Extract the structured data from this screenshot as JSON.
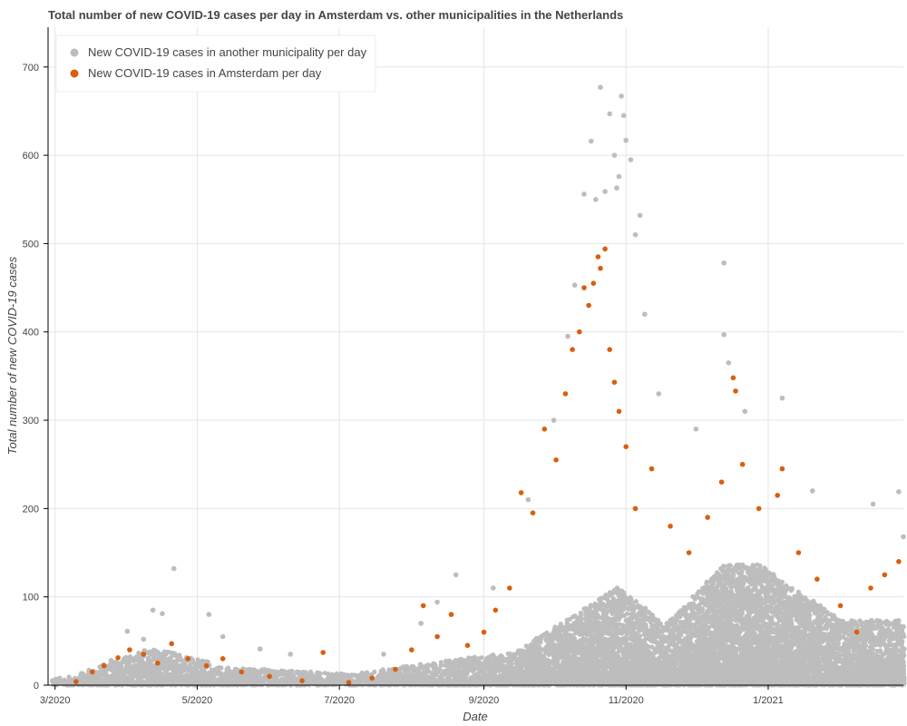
{
  "chart_data": {
    "type": "scatter",
    "title": "Total number of new COVID-19 cases per day in Amsterdam vs. other municipalities in the Netherlands",
    "xlabel": "Date",
    "ylabel": "Total number of new COVID-19 cases",
    "x_axis_type": "datetime",
    "xlim": [
      "2020-02-27",
      "2021-02-28"
    ],
    "ylim": [
      0,
      745
    ],
    "x_ticks": [
      {
        "date": "2020-03-01",
        "label": "3/2020"
      },
      {
        "date": "2020-05-01",
        "label": "5/2020"
      },
      {
        "date": "2020-07-01",
        "label": "7/2020"
      },
      {
        "date": "2020-09-01",
        "label": "9/2020"
      },
      {
        "date": "2020-11-01",
        "label": "11/2020"
      },
      {
        "date": "2021-01-01",
        "label": "1/2021"
      }
    ],
    "y_ticks": [
      0,
      100,
      200,
      300,
      400,
      500,
      600,
      700
    ],
    "grid": true,
    "legend_position": "top-left",
    "series": [
      {
        "name": "New COVID-19 cases in another municipality per day",
        "color": "#bdbdbd",
        "values": [
          {
            "x": "2020-03-15",
            "y": 10
          },
          {
            "x": "2020-03-25",
            "y": 28
          },
          {
            "x": "2020-04-01",
            "y": 61
          },
          {
            "x": "2020-04-08",
            "y": 52
          },
          {
            "x": "2020-04-12",
            "y": 85
          },
          {
            "x": "2020-04-16",
            "y": 81
          },
          {
            "x": "2020-04-21",
            "y": 132
          },
          {
            "x": "2020-05-06",
            "y": 80
          },
          {
            "x": "2020-05-12",
            "y": 55
          },
          {
            "x": "2020-05-28",
            "y": 41
          },
          {
            "x": "2020-06-10",
            "y": 35
          },
          {
            "x": "2020-06-28",
            "y": 12
          },
          {
            "x": "2020-07-20",
            "y": 35
          },
          {
            "x": "2020-08-05",
            "y": 70
          },
          {
            "x": "2020-08-12",
            "y": 94
          },
          {
            "x": "2020-08-20",
            "y": 125
          },
          {
            "x": "2020-09-05",
            "y": 110
          },
          {
            "x": "2020-09-20",
            "y": 210
          },
          {
            "x": "2020-10-01",
            "y": 300
          },
          {
            "x": "2020-10-07",
            "y": 395
          },
          {
            "x": "2020-10-10",
            "y": 453
          },
          {
            "x": "2020-10-14",
            "y": 556
          },
          {
            "x": "2020-10-17",
            "y": 616
          },
          {
            "x": "2020-10-19",
            "y": 550
          },
          {
            "x": "2020-10-21",
            "y": 677
          },
          {
            "x": "2020-10-23",
            "y": 559
          },
          {
            "x": "2020-10-25",
            "y": 647
          },
          {
            "x": "2020-10-27",
            "y": 600
          },
          {
            "x": "2020-10-28",
            "y": 563
          },
          {
            "x": "2020-10-29",
            "y": 576
          },
          {
            "x": "2020-10-30",
            "y": 667
          },
          {
            "x": "2020-10-31",
            "y": 645
          },
          {
            "x": "2020-11-01",
            "y": 617
          },
          {
            "x": "2020-11-03",
            "y": 595
          },
          {
            "x": "2020-11-05",
            "y": 510
          },
          {
            "x": "2020-11-07",
            "y": 532
          },
          {
            "x": "2020-11-09",
            "y": 420
          },
          {
            "x": "2020-11-15",
            "y": 330
          },
          {
            "x": "2020-12-01",
            "y": 290
          },
          {
            "x": "2020-12-13",
            "y": 478
          },
          {
            "x": "2020-12-13",
            "y": 397
          },
          {
            "x": "2020-12-15",
            "y": 365
          },
          {
            "x": "2020-12-22",
            "y": 310
          },
          {
            "x": "2021-01-07",
            "y": 325
          },
          {
            "x": "2021-01-20",
            "y": 220
          },
          {
            "x": "2021-02-15",
            "y": 205
          },
          {
            "x": "2021-02-26",
            "y": 219
          },
          {
            "x": "2021-02-28",
            "y": 168
          }
        ]
      },
      {
        "name": "New COVID-19 cases in Amsterdam per day",
        "color": "#d95f0e",
        "values": [
          {
            "x": "2020-03-10",
            "y": 4
          },
          {
            "x": "2020-03-17",
            "y": 15
          },
          {
            "x": "2020-03-22",
            "y": 22
          },
          {
            "x": "2020-03-28",
            "y": 31
          },
          {
            "x": "2020-04-02",
            "y": 40
          },
          {
            "x": "2020-04-08",
            "y": 35
          },
          {
            "x": "2020-04-14",
            "y": 25
          },
          {
            "x": "2020-04-20",
            "y": 47
          },
          {
            "x": "2020-04-27",
            "y": 30
          },
          {
            "x": "2020-05-05",
            "y": 22
          },
          {
            "x": "2020-05-12",
            "y": 30
          },
          {
            "x": "2020-05-20",
            "y": 15
          },
          {
            "x": "2020-06-01",
            "y": 10
          },
          {
            "x": "2020-06-15",
            "y": 5
          },
          {
            "x": "2020-06-24",
            "y": 37
          },
          {
            "x": "2020-07-05",
            "y": 3
          },
          {
            "x": "2020-07-15",
            "y": 8
          },
          {
            "x": "2020-07-25",
            "y": 18
          },
          {
            "x": "2020-08-01",
            "y": 40
          },
          {
            "x": "2020-08-06",
            "y": 90
          },
          {
            "x": "2020-08-12",
            "y": 55
          },
          {
            "x": "2020-08-18",
            "y": 80
          },
          {
            "x": "2020-08-25",
            "y": 45
          },
          {
            "x": "2020-09-01",
            "y": 60
          },
          {
            "x": "2020-09-06",
            "y": 85
          },
          {
            "x": "2020-09-12",
            "y": 110
          },
          {
            "x": "2020-09-17",
            "y": 218
          },
          {
            "x": "2020-09-22",
            "y": 195
          },
          {
            "x": "2020-09-27",
            "y": 290
          },
          {
            "x": "2020-10-02",
            "y": 255
          },
          {
            "x": "2020-10-06",
            "y": 330
          },
          {
            "x": "2020-10-09",
            "y": 380
          },
          {
            "x": "2020-10-12",
            "y": 400
          },
          {
            "x": "2020-10-14",
            "y": 450
          },
          {
            "x": "2020-10-16",
            "y": 430
          },
          {
            "x": "2020-10-18",
            "y": 455
          },
          {
            "x": "2020-10-20",
            "y": 485
          },
          {
            "x": "2020-10-21",
            "y": 472
          },
          {
            "x": "2020-10-23",
            "y": 494
          },
          {
            "x": "2020-10-25",
            "y": 380
          },
          {
            "x": "2020-10-27",
            "y": 343
          },
          {
            "x": "2020-10-29",
            "y": 310
          },
          {
            "x": "2020-11-01",
            "y": 270
          },
          {
            "x": "2020-11-05",
            "y": 200
          },
          {
            "x": "2020-11-12",
            "y": 245
          },
          {
            "x": "2020-11-20",
            "y": 180
          },
          {
            "x": "2020-11-28",
            "y": 150
          },
          {
            "x": "2020-12-06",
            "y": 190
          },
          {
            "x": "2020-12-12",
            "y": 230
          },
          {
            "x": "2020-12-17",
            "y": 348
          },
          {
            "x": "2020-12-18",
            "y": 333
          },
          {
            "x": "2020-12-21",
            "y": 250
          },
          {
            "x": "2020-12-28",
            "y": 200
          },
          {
            "x": "2021-01-05",
            "y": 215
          },
          {
            "x": "2021-01-07",
            "y": 245
          },
          {
            "x": "2021-01-14",
            "y": 150
          },
          {
            "x": "2021-01-22",
            "y": 120
          },
          {
            "x": "2021-02-01",
            "y": 90
          },
          {
            "x": "2021-02-08",
            "y": 60
          },
          {
            "x": "2021-02-14",
            "y": 110
          },
          {
            "x": "2021-02-20",
            "y": 125
          },
          {
            "x": "2021-02-26",
            "y": 140
          }
        ]
      }
    ]
  }
}
